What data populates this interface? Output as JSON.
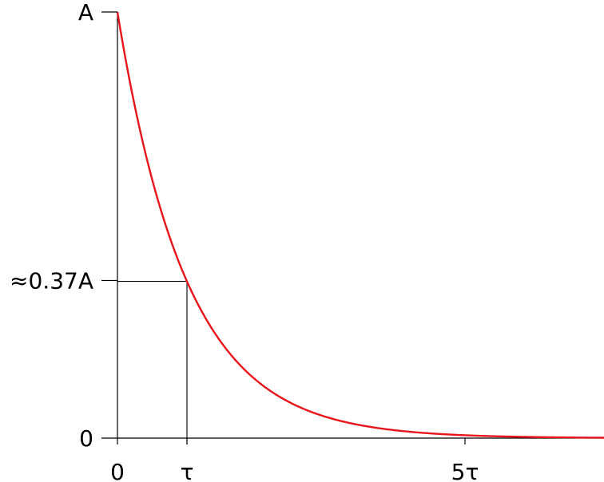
{
  "chart_data": {
    "type": "line",
    "title": "",
    "xlabel": "",
    "ylabel": "",
    "function": "A*exp(-t/tau)",
    "xlim": [
      0,
      7
    ],
    "ylim": [
      0,
      1
    ],
    "x_ticks": [
      {
        "value": 0,
        "label": "0"
      },
      {
        "value": 1,
        "label": "τ"
      },
      {
        "value": 5,
        "label": "5τ"
      }
    ],
    "y_ticks": [
      {
        "value": 0,
        "label": "0"
      },
      {
        "value": 0.37,
        "label": "≈0.37A"
      },
      {
        "value": 1,
        "label": "A"
      }
    ],
    "guide_point": {
      "x": 1,
      "y": 0.3679
    },
    "curve_color": "#e8141a",
    "grid": false,
    "legend": "none"
  }
}
